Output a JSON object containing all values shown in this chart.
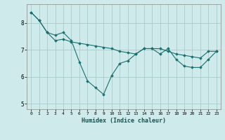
{
  "title": "",
  "xlabel": "Humidex (Indice chaleur)",
  "background_color": "#ceeaea",
  "grid_color": "#afd0d0",
  "line_color": "#1a7070",
  "xlim": [
    -0.5,
    23.5
  ],
  "ylim": [
    4.8,
    8.7
  ],
  "yticks": [
    5,
    6,
    7,
    8
  ],
  "xticks": [
    0,
    1,
    2,
    3,
    4,
    5,
    6,
    7,
    8,
    9,
    10,
    11,
    12,
    13,
    14,
    15,
    16,
    17,
    18,
    19,
    20,
    21,
    22,
    23
  ],
  "line1_x": [
    0,
    1,
    2,
    3,
    4,
    5,
    6,
    7,
    8,
    9,
    10,
    11,
    12,
    13,
    14,
    15,
    16,
    17,
    18,
    19,
    20,
    21,
    22,
    23
  ],
  "line1_y": [
    8.4,
    8.1,
    7.65,
    7.35,
    7.4,
    7.3,
    7.25,
    7.2,
    7.15,
    7.1,
    7.05,
    6.95,
    6.9,
    6.85,
    7.05,
    7.05,
    7.05,
    6.95,
    6.85,
    6.8,
    6.75,
    6.7,
    6.95,
    6.95
  ],
  "line2_x": [
    0,
    1,
    2,
    3,
    4,
    5,
    6,
    7,
    8,
    9,
    10,
    11,
    12,
    13,
    14,
    15,
    16,
    17,
    18,
    19,
    20,
    21,
    22,
    23
  ],
  "line2_y": [
    8.4,
    8.1,
    7.65,
    7.55,
    7.65,
    7.35,
    6.55,
    5.85,
    5.6,
    5.35,
    6.05,
    6.5,
    6.6,
    6.85,
    7.05,
    7.05,
    6.85,
    7.05,
    6.65,
    6.4,
    6.35,
    6.35,
    6.65,
    6.95
  ]
}
